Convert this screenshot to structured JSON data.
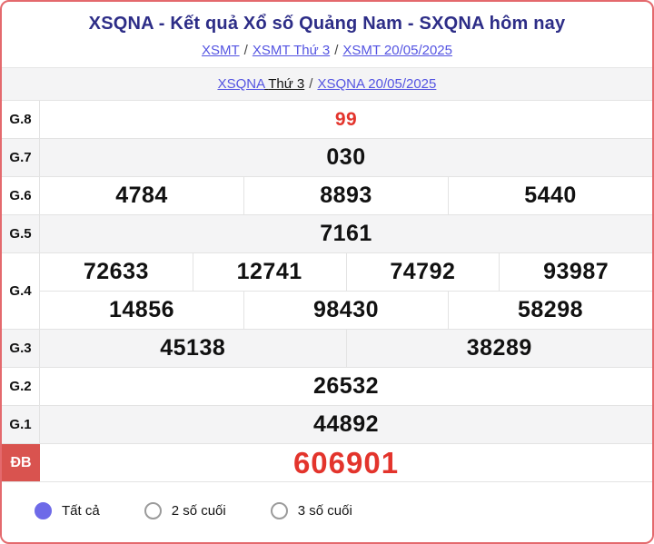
{
  "header": {
    "title": "XSQNA - Kết quả Xổ số Quảng Nam - SXQNA hôm nay"
  },
  "breadcrumb_top": {
    "link1": "XSMT",
    "sep1": "/",
    "link2": "XSMT Thứ 3",
    "sep2": "/",
    "link3": "XSMT 20/05/2025"
  },
  "breadcrumb_sub": {
    "link1": "XSQNA",
    "plain1": "Thứ 3",
    "sep1": "/",
    "link2": "XSQNA 20/05/2025"
  },
  "results_table": {
    "rows": [
      {
        "label": "G.8",
        "shade": false,
        "red": true,
        "small": true,
        "special": false,
        "values_rows": [
          [
            "99"
          ]
        ]
      },
      {
        "label": "G.7",
        "shade": true,
        "red": false,
        "small": false,
        "special": false,
        "values_rows": [
          [
            "030"
          ]
        ]
      },
      {
        "label": "G.6",
        "shade": false,
        "red": false,
        "small": false,
        "special": false,
        "values_rows": [
          [
            "4784",
            "8893",
            "5440"
          ]
        ]
      },
      {
        "label": "G.5",
        "shade": true,
        "red": false,
        "small": false,
        "special": false,
        "values_rows": [
          [
            "7161"
          ]
        ]
      },
      {
        "label": "G.4",
        "shade": false,
        "red": false,
        "small": false,
        "special": false,
        "values_rows": [
          [
            "72633",
            "12741",
            "74792",
            "93987"
          ],
          [
            "14856",
            "98430",
            "58298"
          ]
        ]
      },
      {
        "label": "G.3",
        "shade": true,
        "red": false,
        "small": false,
        "special": false,
        "values_rows": [
          [
            "45138",
            "38289"
          ]
        ]
      },
      {
        "label": "G.2",
        "shade": false,
        "red": false,
        "small": false,
        "special": false,
        "values_rows": [
          [
            "26532"
          ]
        ]
      },
      {
        "label": "G.1",
        "shade": true,
        "red": false,
        "small": false,
        "special": false,
        "values_rows": [
          [
            "44892"
          ]
        ]
      },
      {
        "label": "ĐB",
        "shade": false,
        "red": true,
        "small": false,
        "special": true,
        "values_rows": [
          [
            "606901"
          ]
        ]
      }
    ]
  },
  "filter": {
    "options": [
      {
        "label": "Tất cả",
        "selected": true
      },
      {
        "label": "2 số cuối",
        "selected": false
      },
      {
        "label": "3 số cuối",
        "selected": false
      }
    ]
  },
  "colors": {
    "frame_border": "#e4696d",
    "title_navy": "#2d2d87",
    "link_blue": "#5454e2",
    "number_red": "#e3342c",
    "special_label_bg": "#d9534f",
    "row_shade": "#f4f4f5",
    "radio_selected": "#6e6ae8"
  }
}
